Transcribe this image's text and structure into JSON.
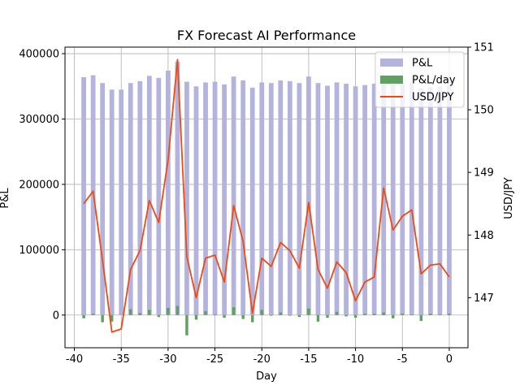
{
  "chart_data": {
    "type": "bar",
    "title": "FX Forecast AI Performance",
    "xlabel": "Day",
    "ylabel": "P&L",
    "y2label": "USD/JPY",
    "xlim": [
      -41,
      2
    ],
    "ylim": [
      -50000,
      410000
    ],
    "y2lim": [
      146.2,
      151.0
    ],
    "xticks": [
      -40,
      -35,
      -30,
      -25,
      -20,
      -15,
      -10,
      -5,
      0
    ],
    "yticks": [
      0,
      100000,
      200000,
      300000,
      400000
    ],
    "y2ticks": [
      147,
      148,
      149,
      150,
      151
    ],
    "grid": true,
    "legend_position": "top-right",
    "x": [
      -39,
      -38,
      -37,
      -36,
      -35,
      -34,
      -33,
      -32,
      -31,
      -30,
      -29,
      -28,
      -27,
      -26,
      -25,
      -24,
      -23,
      -22,
      -21,
      -20,
      -19,
      -18,
      -17,
      -16,
      -15,
      -14,
      -13,
      -12,
      -11,
      -10,
      -9,
      -8,
      -7,
      -6,
      -5,
      -4,
      -3,
      -2,
      -1,
      0
    ],
    "series": [
      {
        "name": "P&L",
        "type": "bar",
        "axis": "left",
        "color": "#b3b3de",
        "values": [
          364000,
          367000,
          355000,
          345000,
          345000,
          355000,
          358000,
          366000,
          363000,
          374000,
          388000,
          357000,
          350000,
          356000,
          357000,
          353000,
          365000,
          359000,
          348000,
          356000,
          355000,
          359000,
          358000,
          355000,
          365000,
          355000,
          351000,
          356000,
          354000,
          350000,
          352000,
          354000,
          358000,
          353000,
          355000,
          356000,
          347000,
          349000,
          350000,
          352000
        ]
      },
      {
        "name": "P&L/day",
        "type": "bar",
        "axis": "left",
        "color": "#60a060",
        "values": [
          -5000,
          2000,
          -11000,
          -10000,
          0,
          9000,
          3000,
          8000,
          -3000,
          11000,
          14000,
          -31000,
          -7000,
          6000,
          1000,
          -4000,
          12000,
          -6000,
          -11000,
          8000,
          -1000,
          4000,
          -1000,
          -3000,
          10000,
          -10000,
          -4000,
          5000,
          -2000,
          -4000,
          2000,
          2000,
          4000,
          -5000,
          2000,
          1000,
          -9000,
          2000,
          1000,
          2000
        ]
      },
      {
        "name": "USD/JPY",
        "type": "line",
        "axis": "right",
        "color": "#f04a12",
        "values": [
          148.5,
          148.7,
          147.6,
          146.45,
          146.5,
          147.45,
          147.75,
          148.55,
          148.2,
          149.2,
          150.8,
          147.65,
          147.0,
          147.63,
          147.68,
          147.25,
          148.47,
          147.9,
          146.75,
          147.63,
          147.5,
          147.88,
          147.75,
          147.47,
          148.52,
          147.45,
          147.15,
          147.57,
          147.4,
          146.95,
          147.25,
          147.33,
          148.75,
          148.08,
          148.3,
          148.4,
          147.38,
          147.52,
          147.54,
          147.33
        ]
      }
    ]
  }
}
